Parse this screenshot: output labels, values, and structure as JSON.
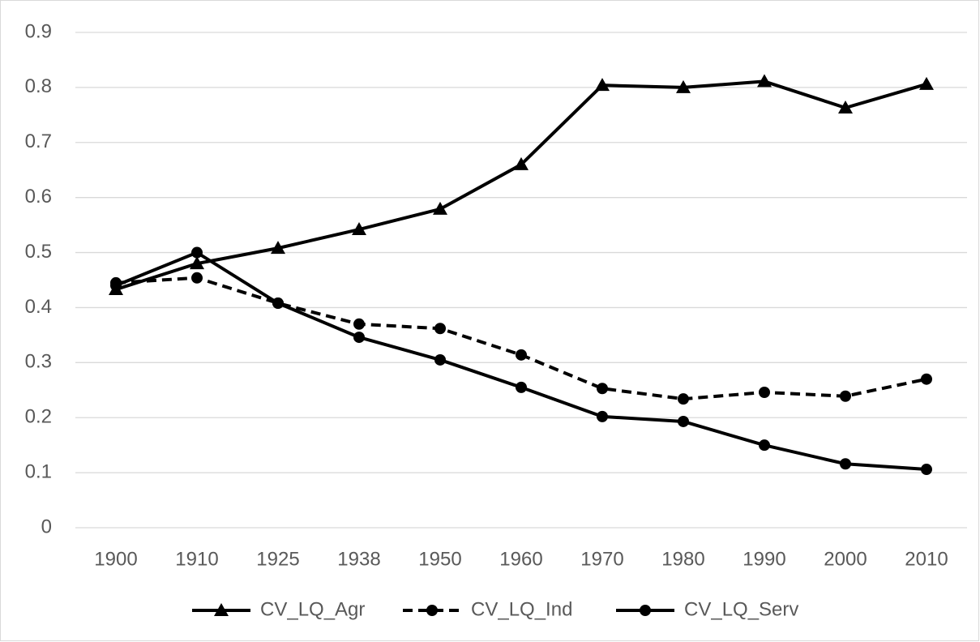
{
  "chart_data": {
    "type": "line",
    "categories": [
      "1900",
      "1910",
      "1925",
      "1938",
      "1950",
      "1960",
      "1970",
      "1980",
      "1990",
      "2000",
      "2010"
    ],
    "series": [
      {
        "name": "CV_LQ_Agr",
        "color": "#000000",
        "marker": "triangle",
        "dash": false,
        "values": [
          0.433,
          0.48,
          0.508,
          0.542,
          0.579,
          0.66,
          0.804,
          0.8,
          0.811,
          0.763,
          0.806
        ]
      },
      {
        "name": "CV_LQ_Ind",
        "color": "#000000",
        "marker": "circle",
        "dash": true,
        "values": [
          0.445,
          0.454,
          0.408,
          0.37,
          0.362,
          0.314,
          0.253,
          0.234,
          0.246,
          0.239,
          0.27
        ]
      },
      {
        "name": "CV_LQ_Serv",
        "color": "#000000",
        "marker": "circle",
        "dash": false,
        "values": [
          0.44,
          0.5,
          0.408,
          0.346,
          0.305,
          0.255,
          0.202,
          0.193,
          0.15,
          0.116,
          0.106
        ]
      }
    ],
    "ylim": [
      0,
      0.9
    ],
    "yticks": [
      0,
      0.1,
      0.2,
      0.3,
      0.4,
      0.5,
      0.6,
      0.7,
      0.8,
      0.9
    ],
    "grid": true,
    "legend": "bottom"
  }
}
